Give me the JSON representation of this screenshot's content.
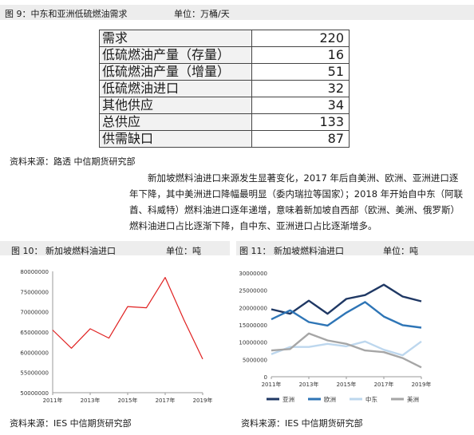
{
  "figure9": {
    "label": "图 9：中东和亚洲低硫燃油需求",
    "unit": "单位：万桶/天",
    "rows": [
      {
        "label": "需求",
        "value": "220"
      },
      {
        "label": "低硫燃油产量（存量）",
        "value": "16"
      },
      {
        "label": "低硫燃油产量（增量）",
        "value": "51"
      },
      {
        "label": "低硫燃油进口",
        "value": "32"
      },
      {
        "label": "其他供应",
        "value": "34"
      },
      {
        "label": "总供应",
        "value": "133"
      },
      {
        "label": "供需缺口",
        "value": "87"
      }
    ],
    "source": "资料来源：路透  中信期货研究部"
  },
  "paragraph": "新加坡燃料油进口来源发生显著变化，2017 年后自美洲、欧洲、亚洲进口逐年下降，其中美洲进口降幅最明显（委内瑞拉等国家）；2018 年开始自中东（阿联酋、科威特）燃料油进口逐年递增，意味着新加坡自西部（欧洲、美洲、俄罗斯）燃料油进口占比逐渐下降，自中东、亚洲进口占比逐渐增多。",
  "figure10": {
    "label": "图 10：  新加坡燃料油进口",
    "unit": "单位：吨",
    "source": "资料来源：IES  中信期货研究部"
  },
  "figure11": {
    "label": "图 11：  新加坡燃料油进口",
    "unit": "单位：吨",
    "source": "资料来源：IES  中信期货研究部"
  },
  "chart_data": [
    {
      "type": "line",
      "title": "",
      "x": [
        "2011年",
        "2012年",
        "2013年",
        "2014年",
        "2015年",
        "2016年",
        "2017年",
        "2018年",
        "2019年"
      ],
      "x_tick_labels": [
        "2011年",
        "2013年",
        "2015年",
        "2017年",
        "2019年"
      ],
      "series": [
        {
          "values": [
            65500000,
            61000000,
            65800000,
            63500000,
            71300000,
            71000000,
            78500000,
            68000000,
            58300000
          ],
          "color": "#e02020"
        }
      ],
      "ylim": [
        50000000,
        80000000
      ],
      "y_ticks": [
        50000000,
        55000000,
        60000000,
        65000000,
        70000000,
        75000000,
        80000000
      ],
      "y_tick_labels": [
        "50000000",
        "55000000",
        "60000000",
        "65000000",
        "70000000",
        "75000000",
        "80000000"
      ],
      "grid": false,
      "xlabel": "",
      "ylabel": ""
    },
    {
      "type": "line",
      "title": "",
      "x": [
        "2011年",
        "2012年",
        "2013年",
        "2014年",
        "2015年",
        "2016年",
        "2017年",
        "2018年",
        "2019年"
      ],
      "x_tick_labels": [
        "2011年",
        "2013年",
        "2015年",
        "2017年",
        "2019年"
      ],
      "series": [
        {
          "name": "亚洲",
          "color": "#1f3864",
          "values": [
            19500000,
            18200000,
            22000000,
            18200000,
            22500000,
            23600000,
            26600000,
            23200000,
            21800000
          ]
        },
        {
          "name": "欧洲",
          "color": "#2e75b6",
          "values": [
            16600000,
            19200000,
            15800000,
            14800000,
            18500000,
            21600000,
            17400000,
            14900000,
            14200000
          ]
        },
        {
          "name": "中东",
          "color": "#bdd7ee",
          "values": [
            6500000,
            8600000,
            8600000,
            9500000,
            8800000,
            10200000,
            7800000,
            6200000,
            10200000
          ]
        },
        {
          "name": "美洲",
          "color": "#a6a6a6",
          "values": [
            7600000,
            8000000,
            12500000,
            10500000,
            9500000,
            7600000,
            7100000,
            5400000,
            2700000
          ]
        }
      ],
      "ylim": [
        0,
        30000000
      ],
      "y_ticks": [
        0,
        5000000,
        10000000,
        15000000,
        20000000,
        25000000,
        30000000
      ],
      "y_tick_labels": [
        "0",
        "5000000",
        "10000000",
        "15000000",
        "20000000",
        "25000000",
        "30000000"
      ],
      "grid": false,
      "legend": "bottom",
      "xlabel": "",
      "ylabel": ""
    }
  ]
}
